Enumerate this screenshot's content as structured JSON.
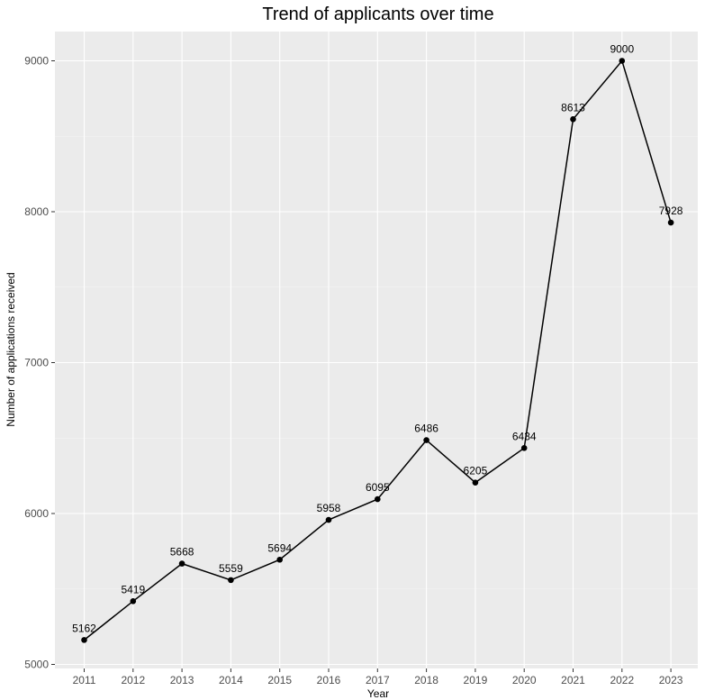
{
  "chart_data": {
    "type": "line",
    "title": "Trend of applicants over time",
    "xlabel": "Year",
    "ylabel": "Number of applications received",
    "x": [
      "2011",
      "2012",
      "2013",
      "2014",
      "2015",
      "2016",
      "2017",
      "2018",
      "2019",
      "2020",
      "2021",
      "2022",
      "2023"
    ],
    "values": [
      5162,
      5419,
      5668,
      5559,
      5694,
      5958,
      6095,
      6486,
      6205,
      6434,
      8613,
      9000,
      7928
    ],
    "y_ticks": [
      5000,
      6000,
      7000,
      8000,
      9000
    ],
    "ylim": [
      5000,
      9000
    ],
    "grid": true,
    "legend": "none",
    "colors": {
      "panel": "#ebebeb",
      "grid": "#ffffff",
      "line": "#000000",
      "point": "#000000"
    }
  }
}
